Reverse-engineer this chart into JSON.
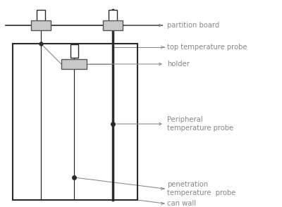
{
  "bg_color": "#ffffff",
  "line_color": "#2a2a2a",
  "gray_fill": "#c8c8c8",
  "gray_edge": "#555555",
  "annot_color": "#888888",
  "labels": {
    "partition_board": "partition board",
    "holder": "holder",
    "top_temp": "top temperature probe",
    "peripheral_temp": "Peripheral\ntemperature probe",
    "penetration_temp": "penetration\ntemperature  probe",
    "can_wall": "can wall"
  },
  "fontsize": 7.2
}
